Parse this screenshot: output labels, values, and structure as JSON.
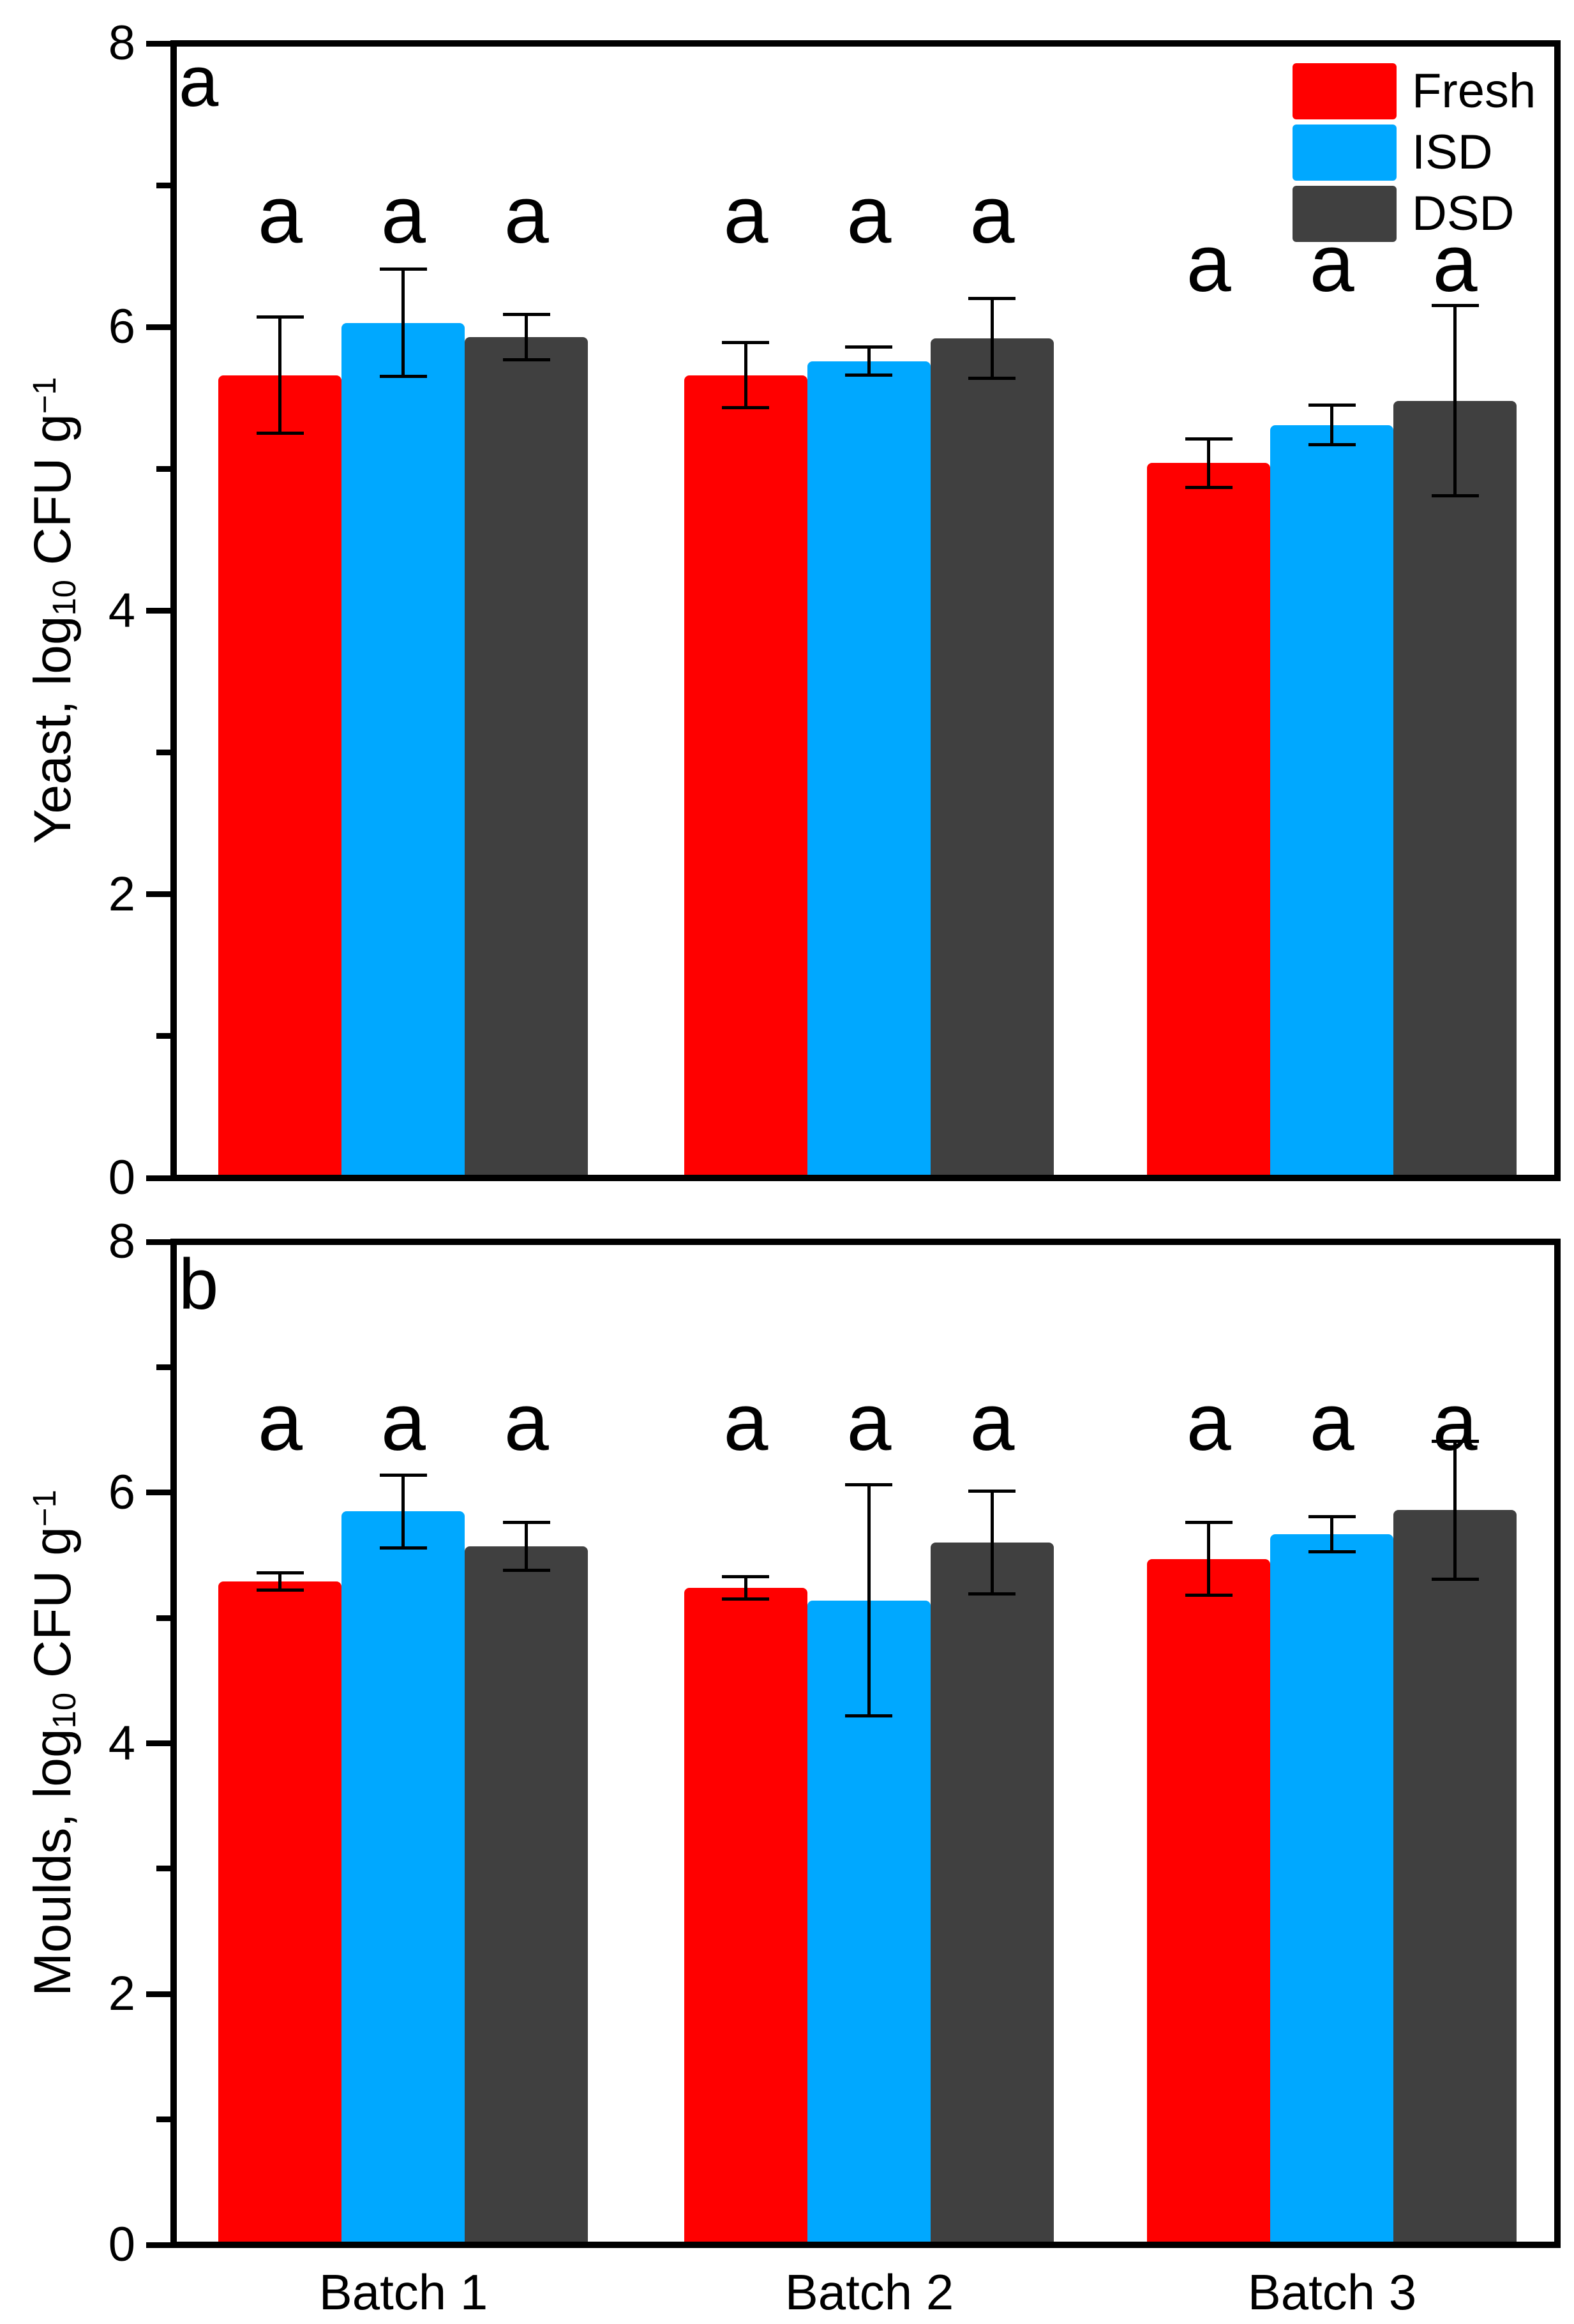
{
  "figure_title": "",
  "chart_data": [
    {
      "type": "bar",
      "panel_label": "a",
      "categories": [
        "Batch 1",
        "Batch 2",
        "Batch 3"
      ],
      "ylabel": "Yeast, log10 CFU g-1",
      "ylabel_parts": {
        "prefix": "Yeast, log",
        "sub": "10",
        "mid": " CFU g",
        "sup": "−1"
      },
      "ylim": [
        0,
        8
      ],
      "yticks": [
        0,
        2,
        4,
        6,
        8
      ],
      "yticks_minor": [
        1,
        3,
        5,
        7
      ],
      "grid": false,
      "legend_position": "top-right-inside",
      "series": [
        {
          "name": "Fresh",
          "color": "#FF0000",
          "values": [
            5.66,
            5.66,
            5.04
          ],
          "errors": [
            0.41,
            0.23,
            0.17
          ]
        },
        {
          "name": "ISD",
          "color": "#00A8FF",
          "values": [
            6.03,
            5.76,
            5.31
          ],
          "errors": [
            0.38,
            0.1,
            0.14
          ]
        },
        {
          "name": "DSD",
          "color": "#404040",
          "values": [
            5.93,
            5.92,
            5.48
          ],
          "errors": [
            0.16,
            0.28,
            0.67
          ]
        }
      ],
      "sig_letters": [
        [
          "a",
          "a",
          "a"
        ],
        [
          "a",
          "a",
          "a"
        ],
        [
          "a",
          "a",
          "a"
        ]
      ],
      "sig_letter_y": [
        6.76,
        6.76,
        6.42
      ]
    },
    {
      "type": "bar",
      "panel_label": "b",
      "categories": [
        "Batch 1",
        "Batch 2",
        "Batch 3"
      ],
      "ylabel": "Moulds, log10 CFU g-1",
      "ylabel_parts": {
        "prefix": "Moulds, log",
        "sub": "10",
        "mid": " CFU g",
        "sup": "−1"
      },
      "ylim": [
        0,
        8
      ],
      "yticks": [
        0,
        2,
        4,
        6,
        8
      ],
      "yticks_minor": [
        1,
        3,
        5,
        7
      ],
      "grid": false,
      "legend_position": "none",
      "series": [
        {
          "name": "Fresh",
          "color": "#FF0000",
          "values": [
            5.29,
            5.24,
            5.47
          ],
          "errors": [
            0.07,
            0.09,
            0.29
          ]
        },
        {
          "name": "ISD",
          "color": "#00A8FF",
          "values": [
            5.85,
            5.14,
            5.67
          ],
          "errors": [
            0.29,
            0.92,
            0.14
          ]
        },
        {
          "name": "DSD",
          "color": "#404040",
          "values": [
            5.57,
            5.6,
            5.86
          ],
          "errors": [
            0.19,
            0.41,
            0.55
          ]
        }
      ],
      "sig_letters": [
        [
          "a",
          "a",
          "a"
        ],
        [
          "a",
          "a",
          "a"
        ],
        [
          "a",
          "a",
          "a"
        ]
      ],
      "sig_letter_y": [
        6.53,
        6.53,
        6.53
      ]
    }
  ]
}
